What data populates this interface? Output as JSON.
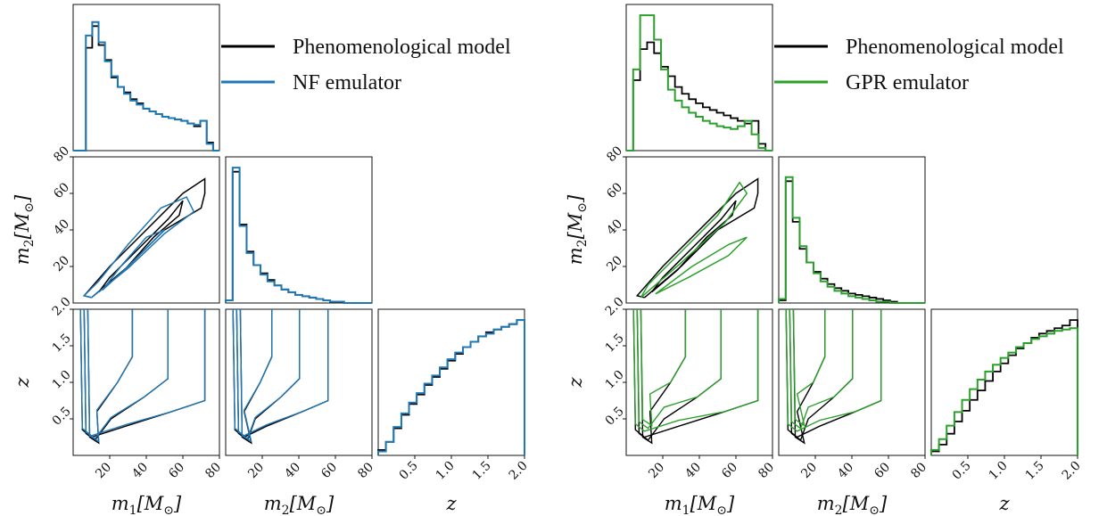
{
  "colors": {
    "phenomenological": "#000000",
    "nf": "#1f77b4",
    "gpr": "#2ca02c"
  },
  "labels": {
    "m1": "m",
    "m1_sub": "1",
    "m1_unit": "[M",
    "m1_unit_end": "]",
    "m2": "m",
    "m2_sub": "2",
    "m2_unit": "[M",
    "m2_unit_end": "]",
    "z": "z",
    "sun_symbol": "⊙"
  },
  "chart_data": [
    {
      "type": "corner",
      "legend": [
        "Phenomenological model",
        "NF emulator"
      ],
      "ticks": {
        "m": [
          "20",
          "40",
          "60",
          "80"
        ],
        "z": [
          "0.5",
          "1.0",
          "1.5",
          "2.0"
        ]
      },
      "axis_ranges": {
        "m1": [
          0,
          80
        ],
        "m2": [
          0,
          80
        ],
        "z": [
          0,
          2
        ]
      },
      "grid": false,
      "series": [
        {
          "name": "Phenomenological model",
          "color": "#000000",
          "m1_hist": [
            0,
            0,
            0.76,
            0.92,
            0.78,
            0.67,
            0.54,
            0.47,
            0.43,
            0.38,
            0.35,
            0.31,
            0.29,
            0.27,
            0.25,
            0.24,
            0.23,
            0.22,
            0.2,
            0.18,
            0.22,
            0.06,
            0
          ],
          "m2_hist": [
            0.02,
            0.97,
            0.58,
            0.38,
            0.28,
            0.22,
            0.17,
            0.13,
            0.1,
            0.08,
            0.06,
            0.05,
            0.04,
            0.03,
            0.02,
            0.01,
            0.01,
            0,
            0,
            0,
            0
          ],
          "z_hist": [
            0.04,
            0.1,
            0.2,
            0.3,
            0.38,
            0.45,
            0.52,
            0.58,
            0.64,
            0.7,
            0.75,
            0.8,
            0.84,
            0.88,
            0.91,
            0.93,
            0.95,
            0.97,
            1.0
          ],
          "m1m2_contours": [
            [
              [
                10,
                3
              ],
              [
                30,
                20
              ],
              [
                50,
                40
              ],
              [
                70,
                52
              ],
              [
                72,
                60
              ],
              [
                72,
                68
              ],
              [
                60,
                60
              ],
              [
                40,
                40
              ],
              [
                20,
                20
              ],
              [
                6,
                4
              ],
              [
                10,
                3
              ]
            ],
            [
              [
                14,
                6
              ],
              [
                28,
                18
              ],
              [
                44,
                36
              ],
              [
                58,
                48
              ],
              [
                60,
                56
              ],
              [
                52,
                46
              ],
              [
                36,
                30
              ],
              [
                20,
                14
              ],
              [
                14,
                6
              ]
            ]
          ]
        },
        {
          "name": "NF emulator",
          "color": "#1f77b4",
          "m1_hist": [
            0,
            0,
            0.85,
            0.95,
            0.8,
            0.66,
            0.55,
            0.47,
            0.42,
            0.37,
            0.34,
            0.31,
            0.29,
            0.27,
            0.25,
            0.24,
            0.23,
            0.22,
            0.2,
            0.19,
            0.22,
            0.05,
            0
          ],
          "m2_hist": [
            0.02,
            1.0,
            0.57,
            0.37,
            0.28,
            0.21,
            0.16,
            0.13,
            0.1,
            0.08,
            0.06,
            0.05,
            0.04,
            0.03,
            0.02,
            0.01,
            0.01,
            0,
            0,
            0,
            0
          ],
          "z_hist": [
            0.03,
            0.1,
            0.21,
            0.31,
            0.39,
            0.46,
            0.53,
            0.59,
            0.65,
            0.71,
            0.76,
            0.8,
            0.84,
            0.88,
            0.9,
            0.93,
            0.95,
            0.97,
            1.0
          ],
          "m1m2_contours": [
            [
              [
                10,
                3
              ],
              [
                30,
                19
              ],
              [
                50,
                38
              ],
              [
                66,
                50
              ],
              [
                62,
                58
              ],
              [
                48,
                52
              ],
              [
                30,
                32
              ],
              [
                14,
                12
              ],
              [
                6,
                4
              ],
              [
                10,
                3
              ]
            ],
            [
              [
                16,
                7
              ],
              [
                30,
                20
              ],
              [
                44,
                34
              ],
              [
                50,
                40
              ],
              [
                40,
                36
              ],
              [
                26,
                20
              ],
              [
                16,
                7
              ]
            ]
          ]
        }
      ]
    },
    {
      "type": "corner",
      "legend": [
        "Phenomenological model",
        "GPR emulator"
      ],
      "ticks": {
        "m": [
          "20",
          "40",
          "60",
          "80"
        ],
        "z": [
          "0.5",
          "1.0",
          "1.5",
          "2.0"
        ]
      },
      "axis_ranges": {
        "m1": [
          0,
          80
        ],
        "m2": [
          0,
          80
        ],
        "z": [
          0,
          2
        ]
      },
      "grid": false,
      "series": [
        {
          "name": "Phenomenological model",
          "color": "#000000",
          "m1_hist": [
            0,
            0.52,
            0.75,
            0.8,
            0.72,
            0.62,
            0.55,
            0.47,
            0.42,
            0.38,
            0.35,
            0.32,
            0.3,
            0.28,
            0.26,
            0.24,
            0.22,
            0.2,
            0.22,
            0.05,
            0
          ],
          "m2_hist": [
            0.02,
            0.9,
            0.6,
            0.4,
            0.3,
            0.23,
            0.18,
            0.14,
            0.11,
            0.09,
            0.07,
            0.06,
            0.05,
            0.04,
            0.03,
            0.02,
            0.01,
            0,
            0,
            0,
            0
          ],
          "z_hist": [
            0.03,
            0.08,
            0.16,
            0.25,
            0.33,
            0.41,
            0.48,
            0.55,
            0.62,
            0.68,
            0.74,
            0.79,
            0.83,
            0.87,
            0.9,
            0.92,
            0.94,
            0.96,
            1.0
          ],
          "m1m2_contours": [
            [
              [
                10,
                3
              ],
              [
                30,
                20
              ],
              [
                50,
                40
              ],
              [
                70,
                52
              ],
              [
                72,
                60
              ],
              [
                72,
                68
              ],
              [
                60,
                60
              ],
              [
                40,
                40
              ],
              [
                20,
                20
              ],
              [
                6,
                4
              ],
              [
                10,
                3
              ]
            ],
            [
              [
                14,
                6
              ],
              [
                28,
                18
              ],
              [
                44,
                36
              ],
              [
                58,
                48
              ],
              [
                60,
                56
              ],
              [
                52,
                46
              ],
              [
                36,
                30
              ],
              [
                20,
                14
              ],
              [
                14,
                6
              ]
            ]
          ]
        },
        {
          "name": "GPR emulator",
          "color": "#2ca02c",
          "m1_hist": [
            0,
            0.6,
            1.0,
            1.0,
            0.82,
            0.6,
            0.45,
            0.37,
            0.32,
            0.28,
            0.25,
            0.22,
            0.2,
            0.18,
            0.17,
            0.16,
            0.18,
            0.22,
            0.12,
            0.02,
            0
          ],
          "m2_hist": [
            0.03,
            0.93,
            0.63,
            0.42,
            0.3,
            0.22,
            0.16,
            0.12,
            0.09,
            0.07,
            0.05,
            0.04,
            0.03,
            0.02,
            0.01,
            0.01,
            0,
            0,
            0,
            0,
            0
          ],
          "z_hist": [
            0.04,
            0.12,
            0.22,
            0.32,
            0.41,
            0.49,
            0.56,
            0.62,
            0.67,
            0.72,
            0.76,
            0.8,
            0.83,
            0.86,
            0.88,
            0.9,
            0.92,
            0.93,
            0.94
          ],
          "m1m2_contours": [
            [
              [
                8,
                3
              ],
              [
                30,
                22
              ],
              [
                54,
                44
              ],
              [
                66,
                60
              ],
              [
                62,
                66
              ],
              [
                50,
                48
              ],
              [
                30,
                28
              ],
              [
                12,
                10
              ],
              [
                8,
                3
              ]
            ],
            [
              [
                16,
                5
              ],
              [
                34,
                14
              ],
              [
                56,
                26
              ],
              [
                66,
                36
              ],
              [
                56,
                32
              ],
              [
                36,
                20
              ],
              [
                16,
                5
              ]
            ]
          ]
        }
      ]
    }
  ]
}
